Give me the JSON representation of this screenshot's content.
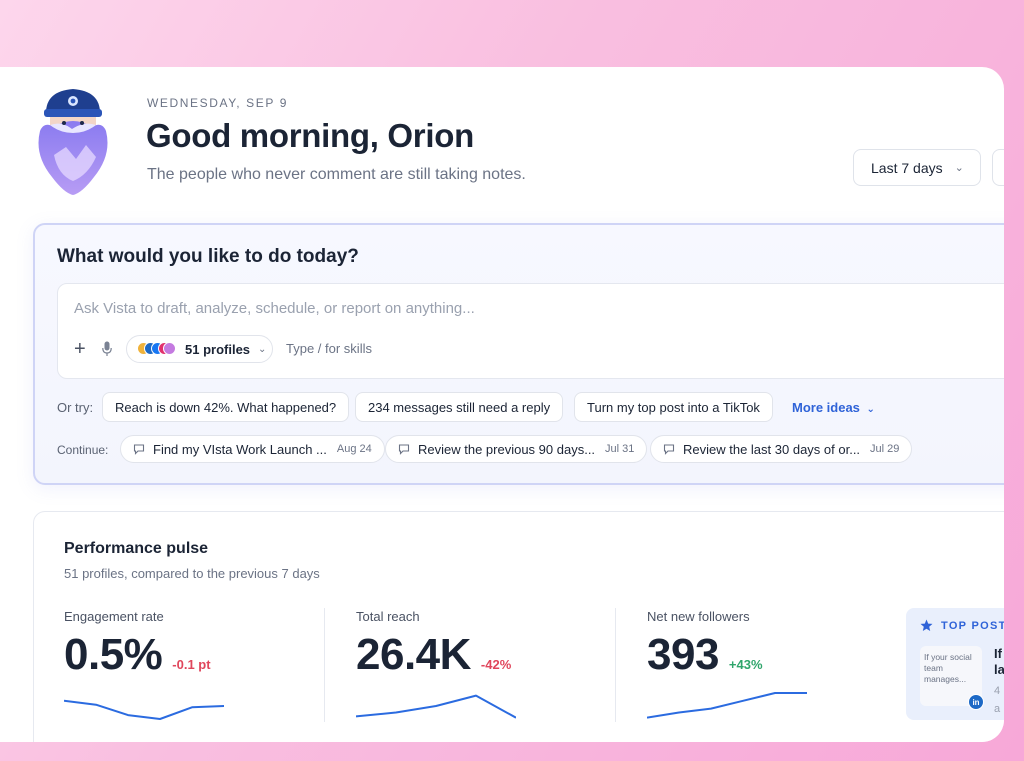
{
  "header": {
    "date": "WEDNESDAY, SEP 9",
    "greeting": "Good morning, Orion",
    "subtitle": "The people who never comment are still taking notes.",
    "range_label": "Last 7 days"
  },
  "ask": {
    "title": "What would you like to do today?",
    "placeholder": "Ask Vista to draft, analyze, schedule, or report on anything...",
    "profiles_label": "51 profiles",
    "type_hint": "Type / for skills",
    "or_try_label": "Or try:",
    "suggestions": [
      "Reach is down 42%. What happened?",
      "234 messages still need a reply",
      "Turn my top post into a TikTok"
    ],
    "more_ideas": "More ideas",
    "continue_label": "Continue:",
    "continue_items": [
      {
        "text": "Find my VIsta Work Launch ...",
        "date": "Aug 24"
      },
      {
        "text": "Review the previous 90 days...",
        "date": "Jul 31"
      },
      {
        "text": "Review the last 30 days of or...",
        "date": "Jul 29"
      }
    ]
  },
  "performance": {
    "title": "Performance pulse",
    "subtitle": "51 profiles, compared to the previous 7 days",
    "metrics": [
      {
        "label": "Engagement rate",
        "value": "0.5%",
        "delta": "-0.1 pt",
        "trend": "negative",
        "spark": [
          0.3,
          0.45,
          0.85,
          1.0,
          0.55,
          0.5
        ]
      },
      {
        "label": "Total reach",
        "value": "26.4K",
        "delta": "-42%",
        "trend": "negative",
        "spark": [
          0.9,
          0.75,
          0.5,
          0.1,
          0.95
        ]
      },
      {
        "label": "Net new followers",
        "value": "393",
        "delta": "+43%",
        "trend": "positive",
        "spark": [
          0.95,
          0.75,
          0.6,
          0.3,
          0.0,
          0.0
        ]
      }
    ],
    "top_post": {
      "label": "TOP POST",
      "thumb_text": "If your social team manages...",
      "text_line1": "If",
      "text_line2": "la",
      "meta_line1": "4",
      "meta_line2": "a",
      "network_badge": "in"
    }
  },
  "colors": {
    "accent": "#2f63d8",
    "negative": "#e0465c",
    "positive": "#2fa56b",
    "spark": "#2b6be0"
  }
}
